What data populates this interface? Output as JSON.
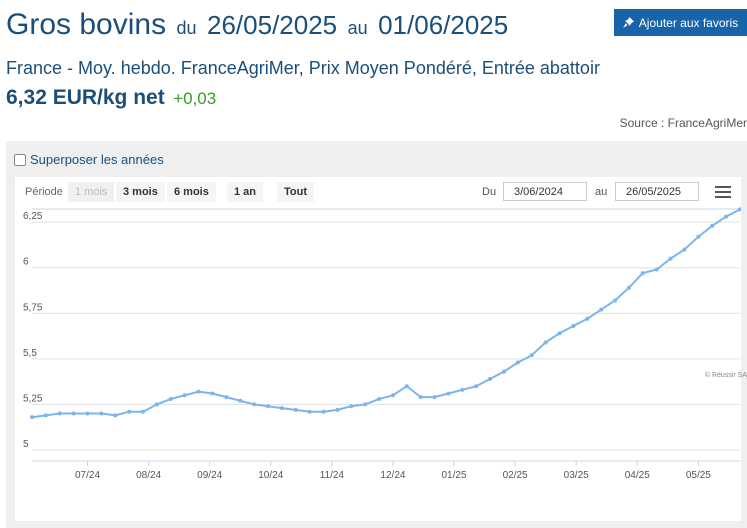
{
  "header": {
    "title": "Gros bovins",
    "du": "du",
    "date_from": "26/05/2025",
    "au": "au",
    "date_to": "01/06/2025",
    "fav_button": "Ajouter aux favoris",
    "fav_icon": "pin-icon",
    "subtitle": "France - Moy. hebdo. FranceAgriMer, Prix Moyen Pondéré, Entrée abattoir",
    "price": "6,32 EUR/kg net",
    "delta": "+0,03",
    "source": "Source : FranceAgriMer"
  },
  "controls": {
    "overlay_label": "Superposer les années",
    "periode_label": "Période",
    "period_buttons": [
      "1 mois",
      "3 mois",
      "6 mois",
      "1 an",
      "Tout"
    ],
    "du_label": "Du",
    "from_value": "3/06/2024",
    "au_label": "au",
    "to_value": "26/05/2025",
    "menu_icon": "hamburger-menu-icon"
  },
  "credit": "© Réussir SA",
  "colors": {
    "brand": "#1b4f7a",
    "button": "#1963a8",
    "positive": "#3a9a2a",
    "line": "#7cb5ec"
  },
  "chart_data": {
    "type": "line",
    "x_tick_labels": [
      "07/24",
      "08/24",
      "09/24",
      "10/24",
      "11/24",
      "12/24",
      "01/25",
      "02/25",
      "03/25",
      "04/25",
      "05/25"
    ],
    "y_ticks": [
      5,
      5.25,
      5.5,
      5.75,
      6,
      6.25
    ],
    "y_tick_labels": [
      "5",
      "5,25",
      "5,5",
      "5,75",
      "6",
      "6,25"
    ],
    "ylim": [
      5,
      6.3
    ],
    "grid": true,
    "weeks_per_x_tick": 4.4,
    "first_tick_week_index": 4,
    "values": [
      5.18,
      5.19,
      5.2,
      5.2,
      5.2,
      5.2,
      5.19,
      5.21,
      5.21,
      5.25,
      5.28,
      5.3,
      5.32,
      5.31,
      5.29,
      5.27,
      5.25,
      5.24,
      5.23,
      5.22,
      5.21,
      5.21,
      5.22,
      5.24,
      5.25,
      5.28,
      5.3,
      5.35,
      5.29,
      5.29,
      5.31,
      5.33,
      5.35,
      5.39,
      5.43,
      5.48,
      5.52,
      5.59,
      5.64,
      5.68,
      5.72,
      5.77,
      5.82,
      5.89,
      5.97,
      5.99,
      6.05,
      6.1,
      6.17,
      6.23,
      6.28,
      6.32
    ]
  }
}
